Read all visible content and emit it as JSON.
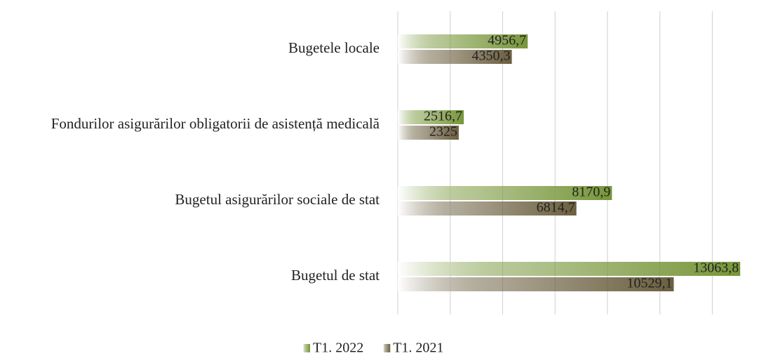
{
  "chart_data": {
    "type": "barh",
    "categories": [
      "Bugetele locale",
      "Fondurilor asigurărilor obligatorii de asistență medicală",
      "Bugetul asigurărilor sociale de stat",
      "Bugetul de stat"
    ],
    "series": [
      {
        "name": "T1. 2022",
        "color": "#77963a",
        "values": [
          4956.7,
          2516.7,
          8170.9,
          13063.8
        ],
        "value_labels": [
          "4956,7",
          "2516,7",
          "8170,9",
          "13063,8"
        ]
      },
      {
        "name": "T1. 2021",
        "color": "#6b5f3f",
        "values": [
          4350.3,
          2325,
          6814.7,
          10529.1
        ],
        "value_labels": [
          "4350,3",
          "2325",
          "6814,7",
          "10529,1"
        ]
      }
    ],
    "xlim": [
      0,
      14000
    ],
    "xticks": [
      0,
      2000,
      4000,
      6000,
      8000,
      10000,
      12000
    ],
    "grid": true,
    "legend": "bottom"
  }
}
